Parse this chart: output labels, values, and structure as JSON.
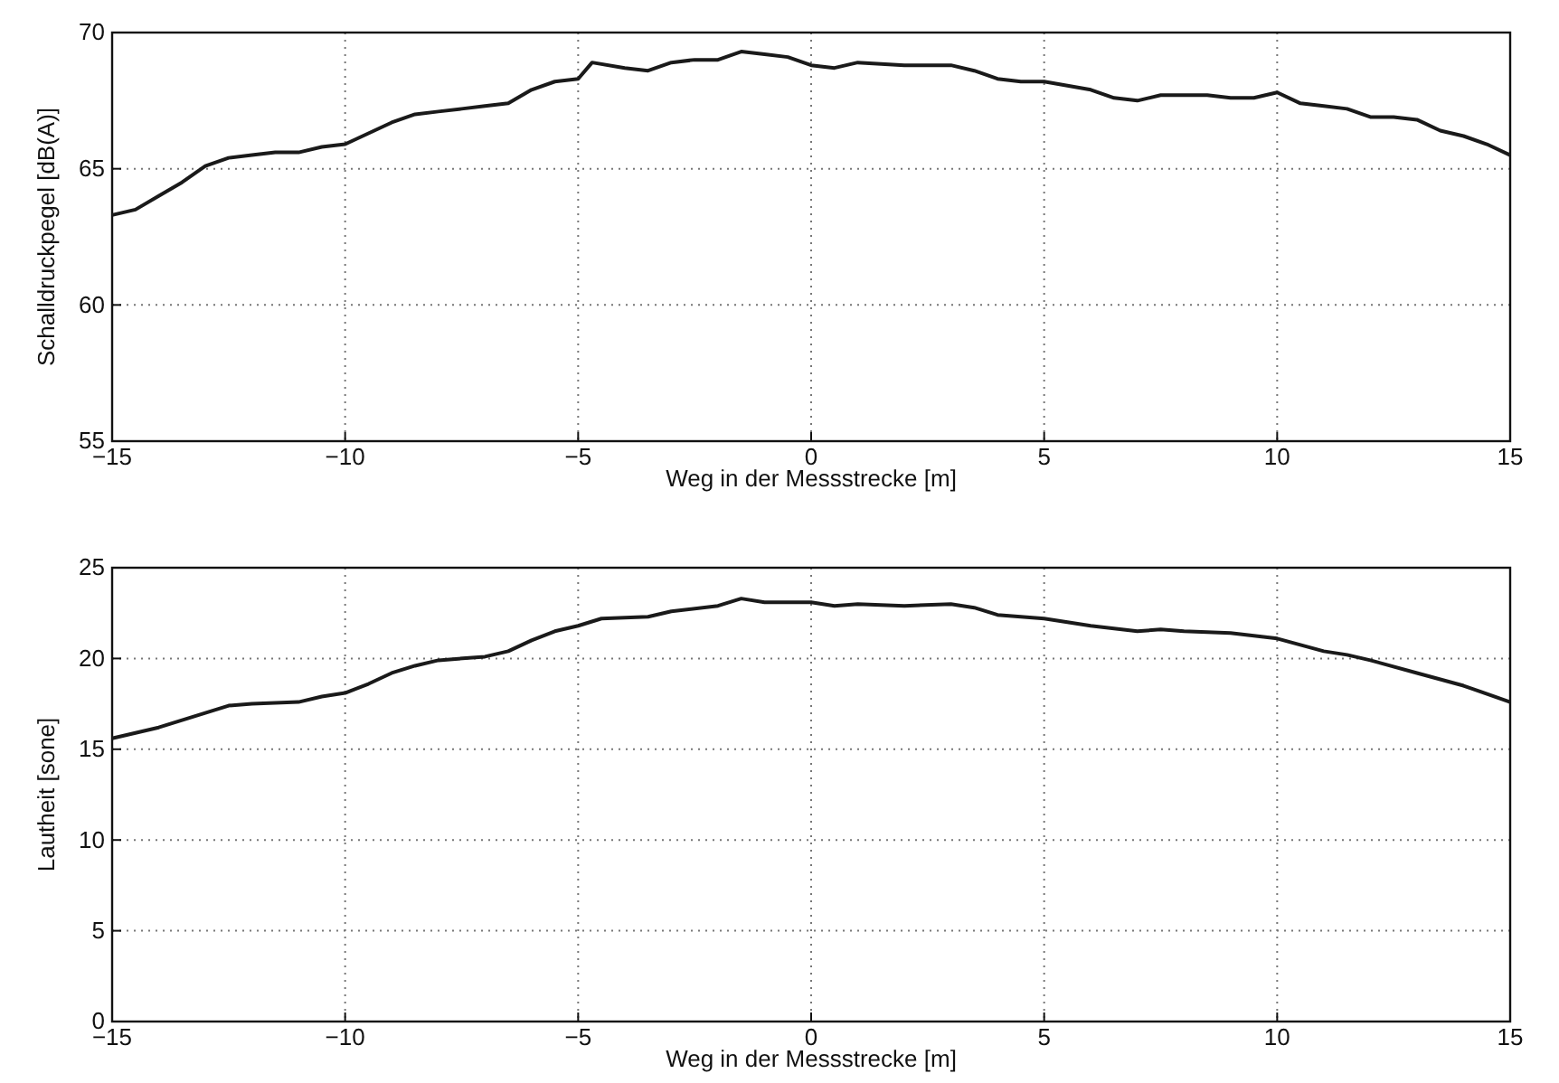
{
  "chart_data": [
    {
      "type": "line",
      "xlabel": "Weg in der Messstrecke [m]",
      "ylabel": "Schalldruckpegel [dB(A)]",
      "xlim": [
        -15,
        15
      ],
      "xticks": [
        {
          "value": -15,
          "label": "−15"
        },
        {
          "value": -10,
          "label": "−10"
        },
        {
          "value": -5,
          "label": "−5"
        },
        0,
        5,
        10,
        15
      ],
      "ylim": [
        55,
        70
      ],
      "yticks": [
        55,
        60,
        65,
        70
      ],
      "grid": true,
      "line_style": "solid",
      "series": [
        {
          "color": "#1a1a1a",
          "x": [
            -15,
            -14.5,
            -14,
            -13.5,
            -13,
            -12.5,
            -12,
            -11.5,
            -11,
            -10.5,
            -10,
            -9.5,
            -9,
            -8.5,
            -8,
            -7.5,
            -7,
            -6.5,
            -6,
            -5.5,
            -5,
            -4.7,
            -4,
            -3.5,
            -3,
            -2.5,
            -2,
            -1.5,
            -1,
            -0.5,
            0,
            0.5,
            1,
            2,
            3,
            3.5,
            4,
            4.5,
            5,
            6,
            6.5,
            7,
            7.5,
            8,
            8.5,
            9,
            9.5,
            10,
            10.5,
            11,
            11.5,
            12,
            12.5,
            13,
            13.5,
            14,
            14.5,
            15
          ],
          "values": [
            63.3,
            63.5,
            64.0,
            64.5,
            65.1,
            65.4,
            65.5,
            65.6,
            65.6,
            65.8,
            65.9,
            66.3,
            66.7,
            67.0,
            67.1,
            67.2,
            67.3,
            67.4,
            67.9,
            68.2,
            68.3,
            68.9,
            68.7,
            68.6,
            68.9,
            69.0,
            69.0,
            69.3,
            69.2,
            69.1,
            68.8,
            68.7,
            68.9,
            68.8,
            68.8,
            68.6,
            68.3,
            68.2,
            68.2,
            67.9,
            67.6,
            67.5,
            67.7,
            67.7,
            67.7,
            67.6,
            67.6,
            67.8,
            67.4,
            67.3,
            67.2,
            66.9,
            66.9,
            66.8,
            66.4,
            66.2,
            65.9,
            65.5
          ]
        }
      ]
    },
    {
      "type": "line",
      "xlabel": "Weg in der Messstrecke [m]",
      "ylabel": "Lautheit [sone]",
      "xlim": [
        -15,
        15
      ],
      "xticks": [
        {
          "value": -15,
          "label": "−15"
        },
        {
          "value": -10,
          "label": "−10"
        },
        {
          "value": -5,
          "label": "−5"
        },
        0,
        5,
        10,
        15
      ],
      "ylim": [
        0,
        25
      ],
      "yticks": [
        0,
        5,
        10,
        15,
        20,
        25
      ],
      "grid": true,
      "line_style": "solid",
      "series": [
        {
          "color": "#1a1a1a",
          "x": [
            -15,
            -14,
            -13,
            -12.5,
            -12,
            -11,
            -10.5,
            -10,
            -9.5,
            -9,
            -8.5,
            -8,
            -7,
            -6.5,
            -6,
            -5.5,
            -5,
            -4.5,
            -3.5,
            -3,
            -2,
            -1.5,
            -1,
            0,
            0.5,
            1,
            2,
            3,
            3.5,
            4,
            4.5,
            5,
            6,
            7,
            7.5,
            8,
            9,
            10,
            11,
            11.5,
            12,
            13,
            14,
            15
          ],
          "values": [
            15.6,
            16.2,
            17.0,
            17.4,
            17.5,
            17.6,
            17.9,
            18.1,
            18.6,
            19.2,
            19.6,
            19.9,
            20.1,
            20.4,
            21.0,
            21.5,
            21.8,
            22.2,
            22.3,
            22.6,
            22.9,
            23.3,
            23.1,
            23.1,
            22.9,
            23.0,
            22.9,
            23.0,
            22.8,
            22.4,
            22.3,
            22.2,
            21.8,
            21.5,
            21.6,
            21.5,
            21.4,
            21.1,
            20.4,
            20.2,
            19.9,
            19.2,
            18.5,
            17.6
          ]
        }
      ]
    }
  ]
}
